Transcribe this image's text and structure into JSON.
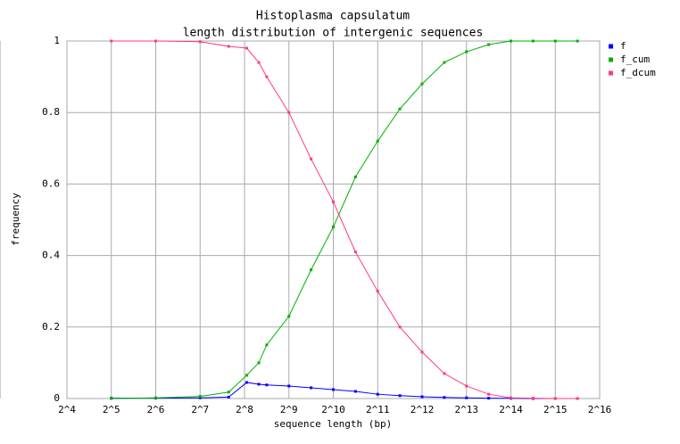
{
  "chart_data": {
    "type": "line",
    "title": "Histoplasma capsulatum",
    "subtitle": "length distribution of intergenic sequences",
    "x_label": "sequence length (bp)",
    "y_label": "frequency",
    "log_x": true,
    "log_base": 2,
    "grid": true,
    "legend": "right",
    "x": [
      32,
      64,
      128,
      200,
      265,
      320,
      362,
      512,
      724,
      1024,
      1448,
      2048,
      2896,
      4096,
      5793,
      8192,
      11585,
      16384,
      23170,
      32768,
      46341
    ],
    "series": [
      {
        "name": "f",
        "color": "#0000ff",
        "values": [
          0.001,
          0.001,
          0.002,
          0.004,
          0.045,
          0.04,
          0.038,
          0.035,
          0.03,
          0.025,
          0.02,
          0.012,
          0.008,
          0.005,
          0.003,
          0.002,
          0.001,
          0.0005,
          0,
          0,
          0
        ]
      },
      {
        "name": "f_cum",
        "color": "#00b000",
        "values": [
          0,
          0.002,
          0.006,
          0.018,
          0.065,
          0.1,
          0.15,
          0.23,
          0.36,
          0.48,
          0.62,
          0.72,
          0.81,
          0.88,
          0.94,
          0.97,
          0.99,
          1,
          1,
          1,
          1
        ]
      },
      {
        "name": "f_dcum",
        "color": "#ff3c78",
        "values": [
          1,
          1,
          0.998,
          0.985,
          0.98,
          0.94,
          0.9,
          0.8,
          0.67,
          0.55,
          0.41,
          0.3,
          0.2,
          0.13,
          0.07,
          0.035,
          0.012,
          0.002,
          0.001,
          0,
          0
        ]
      }
    ],
    "xlim": [
      16,
      65536
    ],
    "xticks": [
      {
        "value": 16,
        "label": "2^4"
      },
      {
        "value": 32,
        "label": "2^5"
      },
      {
        "value": 64,
        "label": "2^6"
      },
      {
        "value": 128,
        "label": "2^7"
      },
      {
        "value": 256,
        "label": "2^8"
      },
      {
        "value": 512,
        "label": "2^9"
      },
      {
        "value": 1024,
        "label": "2^10"
      },
      {
        "value": 2048,
        "label": "2^11"
      },
      {
        "value": 4096,
        "label": "2^12"
      },
      {
        "value": 8192,
        "label": "2^13"
      },
      {
        "value": 16384,
        "label": "2^14"
      },
      {
        "value": 32768,
        "label": "2^15"
      },
      {
        "value": 65536,
        "label": "2^16"
      }
    ],
    "ylim": [
      0,
      1
    ],
    "yticks": [
      0,
      0.2,
      0.4,
      0.6,
      0.8,
      1
    ]
  }
}
